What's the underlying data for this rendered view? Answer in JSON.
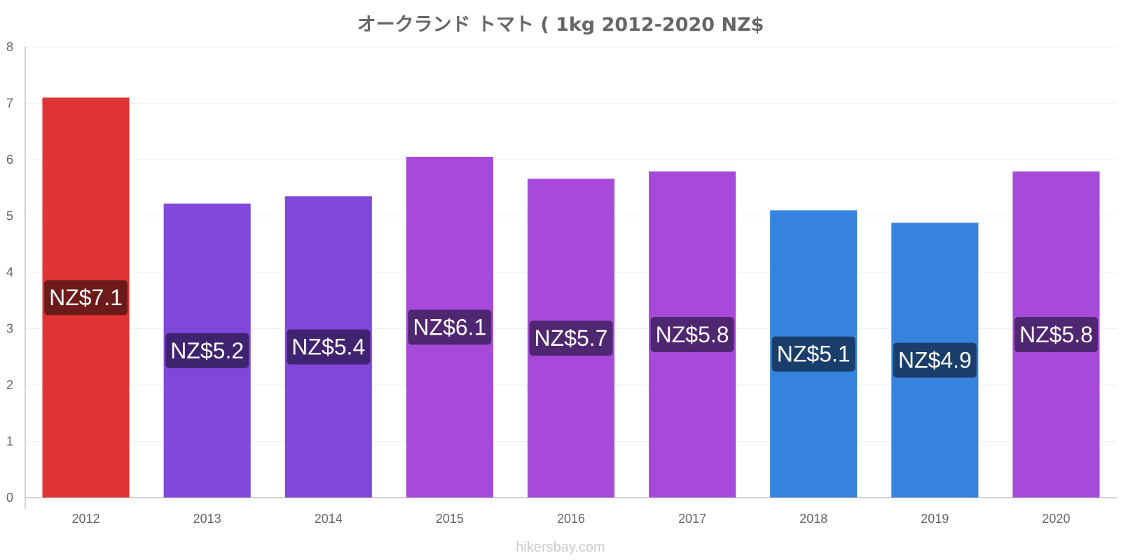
{
  "chart_data": {
    "type": "bar",
    "title": "オークランド トマト ( 1kg 2012-2020 NZ$",
    "xlabel": "",
    "ylabel": "",
    "ylim": [
      0,
      8
    ],
    "yticks": [
      "0",
      "1",
      "2",
      "3",
      "4",
      "5",
      "6",
      "7",
      "8"
    ],
    "grid": true,
    "categories": [
      "2012",
      "2013",
      "2014",
      "2015",
      "2016",
      "2017",
      "2018",
      "2019",
      "2020"
    ],
    "values": [
      7.1,
      5.22,
      5.35,
      6.05,
      5.66,
      5.79,
      5.1,
      4.88,
      5.79
    ],
    "labels": [
      "NZ$7.1",
      "NZ$5.2",
      "NZ$5.4",
      "NZ$6.1",
      "NZ$5.7",
      "NZ$5.8",
      "NZ$5.1",
      "NZ$4.9",
      "NZ$5.8"
    ],
    "bar_colors": [
      "#e03434",
      "#8047db",
      "#8047db",
      "#a84ad9",
      "#a84ad9",
      "#a84ad9",
      "#3683df",
      "#3683df",
      "#a84ad9"
    ],
    "label_colors": [
      "#6d1a1a",
      "#3f2370",
      "#3f2370",
      "#4f2670",
      "#4f2670",
      "#4f2670",
      "#1a3e6c",
      "#1a3e6c",
      "#4f2670"
    ]
  },
  "footer": {
    "credit": "hikersbay.com"
  }
}
